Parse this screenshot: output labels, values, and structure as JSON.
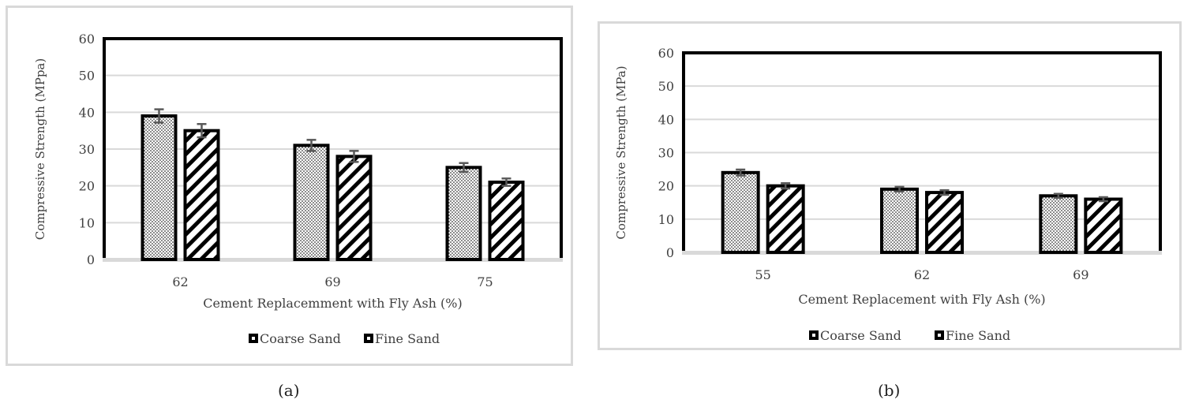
{
  "charts": [
    {
      "caption": "(a)",
      "chart_data": {
        "type": "bar",
        "ylabel": "Compressive Strength (MPpa)",
        "xlabel": "Cement Replacemment with Fly Ash (%)",
        "categories": [
          "62",
          "69",
          "75"
        ],
        "ylim": [
          0,
          60
        ],
        "yticks": [
          "0",
          "10",
          "20",
          "30",
          "40",
          "50",
          "60"
        ],
        "series": [
          {
            "name": "Coarse Sand",
            "values": [
              39,
              31,
              25
            ],
            "errors": [
              1.8,
              1.5,
              1.2
            ],
            "pattern": "dots"
          },
          {
            "name": "Fine Sand",
            "values": [
              35,
              28,
              21
            ],
            "errors": [
              1.8,
              1.5,
              1.0
            ],
            "pattern": "diagonal"
          }
        ],
        "legend_position": "bottom",
        "grid": true
      }
    },
    {
      "caption": "(b)",
      "chart_data": {
        "type": "bar",
        "ylabel": "Compressive Strength (MPa)",
        "xlabel": "Cement Replacement with Fly Ash (%)",
        "categories": [
          "55",
          "62",
          "69"
        ],
        "ylim": [
          0,
          60
        ],
        "yticks": [
          "0",
          "10",
          "20",
          "30",
          "40",
          "50",
          "60"
        ],
        "series": [
          {
            "name": "Coarse Sand",
            "values": [
              24,
              19,
              17
            ],
            "errors": [
              0.9,
              0.7,
              0.6
            ],
            "pattern": "dots"
          },
          {
            "name": "Fine Sand",
            "values": [
              20,
              18,
              16
            ],
            "errors": [
              0.8,
              0.7,
              0.6
            ],
            "pattern": "diagonal"
          }
        ],
        "legend_position": "bottom",
        "grid": true
      }
    }
  ]
}
